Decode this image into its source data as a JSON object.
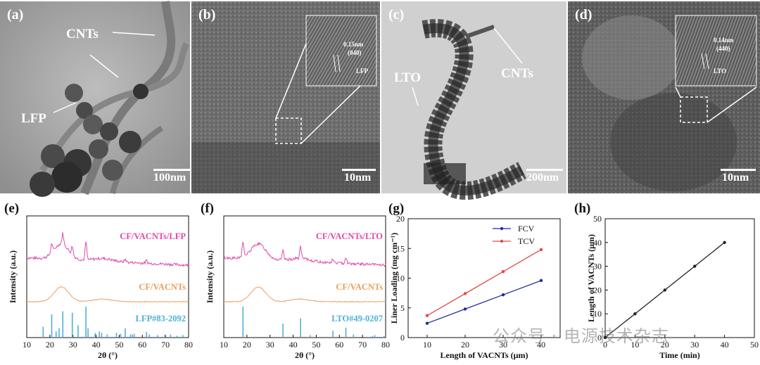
{
  "panels": {
    "a": {
      "label": "(a)",
      "cnts": "CNTs",
      "lfp": "LFP",
      "scale": "100nm"
    },
    "b": {
      "label": "(b)",
      "d_spacing": "0.15nm",
      "plane": "(040)",
      "phase": "LFP",
      "scale": "10nm"
    },
    "c": {
      "label": "(c)",
      "lto": "LTO",
      "cnts": "CNTs",
      "scale": "200nm"
    },
    "d": {
      "label": "(d)",
      "d_spacing": "0.14nm",
      "plane": "(440)",
      "phase": "LTO",
      "scale": "10nm"
    },
    "e": {
      "label": "(e)"
    },
    "f": {
      "label": "(f)"
    },
    "g": {
      "label": "(g)"
    },
    "h": {
      "label": "(h)"
    }
  },
  "watermark": "公众号 · 电源技术杂志",
  "chart_data": [
    {
      "id": "e",
      "type": "line",
      "xlabel": "2θ  (°)",
      "ylabel": "Intensity (a.u.)",
      "xlim": [
        10,
        80
      ],
      "xticks": [
        10,
        20,
        30,
        40,
        50,
        60,
        70,
        80
      ],
      "series": [
        {
          "name": "CF/VACNTs/LFP",
          "color": "#e04aa8"
        },
        {
          "name": "CF/VACNTs",
          "color": "#e8a060"
        },
        {
          "name": "LFP#83-2092",
          "color": "#4fb0d8",
          "sticks": [
            [
              17.1,
              0.35
            ],
            [
              20.8,
              0.75
            ],
            [
              22.7,
              0.2
            ],
            [
              24.0,
              0.3
            ],
            [
              25.6,
              0.85
            ],
            [
              29.7,
              0.8
            ],
            [
              32.2,
              0.4
            ],
            [
              35.6,
              1.0
            ],
            [
              36.5,
              0.3
            ],
            [
              39.6,
              0.15
            ],
            [
              41.4,
              0.2
            ],
            [
              42.4,
              0.15
            ],
            [
              44.8,
              0.1
            ],
            [
              48.8,
              0.15
            ],
            [
              50.6,
              0.12
            ],
            [
              52.6,
              0.3
            ],
            [
              54.9,
              0.1
            ],
            [
              55.7,
              0.1
            ],
            [
              56.5,
              0.12
            ],
            [
              61.8,
              0.18
            ],
            [
              63.0,
              0.1
            ],
            [
              66.6,
              0.08
            ],
            [
              69.7,
              0.08
            ],
            [
              72.2,
              0.1
            ],
            [
              75.0,
              0.06
            ],
            [
              77.5,
              0.08
            ]
          ]
        }
      ]
    },
    {
      "id": "f",
      "type": "line",
      "xlabel": "2θ  (°)",
      "ylabel": "Intensity (a.u.)",
      "xlim": [
        10,
        80
      ],
      "xticks": [
        10,
        20,
        30,
        40,
        50,
        60,
        70,
        80
      ],
      "series": [
        {
          "name": "CF/VACNTs/LTO",
          "color": "#e04aa8"
        },
        {
          "name": "CF/VACNTs",
          "color": "#e8a060"
        },
        {
          "name": "LTO#49-0207",
          "color": "#4fb0d8",
          "sticks": [
            [
              18.3,
              1.0
            ],
            [
              35.6,
              0.45
            ],
            [
              43.2,
              0.62
            ],
            [
              47.4,
              0.08
            ],
            [
              57.2,
              0.22
            ],
            [
              62.8,
              0.32
            ],
            [
              66.1,
              0.1
            ],
            [
              74.3,
              0.05
            ],
            [
              75.3,
              0.08
            ],
            [
              79.3,
              0.05
            ]
          ]
        }
      ]
    },
    {
      "id": "g",
      "type": "line",
      "xlabel": "Length of VACNTs (μm)",
      "ylabel": "Liner Loading (mg cm⁻¹)",
      "xlim": [
        5,
        45
      ],
      "ylim": [
        0,
        20
      ],
      "xticks": [
        10,
        20,
        30,
        40
      ],
      "yticks": [
        0,
        5,
        10,
        15,
        20
      ],
      "x": [
        10,
        20,
        30,
        40
      ],
      "series": [
        {
          "name": "FCV",
          "color": "#1f2f9a",
          "values": [
            2.4,
            4.8,
            7.2,
            9.6
          ]
        },
        {
          "name": "TCV",
          "color": "#e24a4a",
          "values": [
            3.7,
            7.4,
            11.1,
            14.8
          ]
        }
      ],
      "legend": "top-left"
    },
    {
      "id": "h",
      "type": "line",
      "xlabel": "Time (min)",
      "ylabel": "Length of VACNTs (μm)",
      "xlim": [
        0,
        50
      ],
      "ylim": [
        0,
        50
      ],
      "xticks": [
        0,
        10,
        20,
        30,
        40,
        50
      ],
      "yticks": [
        0,
        10,
        20,
        30,
        40,
        50
      ],
      "x": [
        0,
        10,
        20,
        30,
        40
      ],
      "series": [
        {
          "color": "#222222",
          "values": [
            0,
            10,
            20,
            30,
            40
          ]
        }
      ]
    }
  ]
}
